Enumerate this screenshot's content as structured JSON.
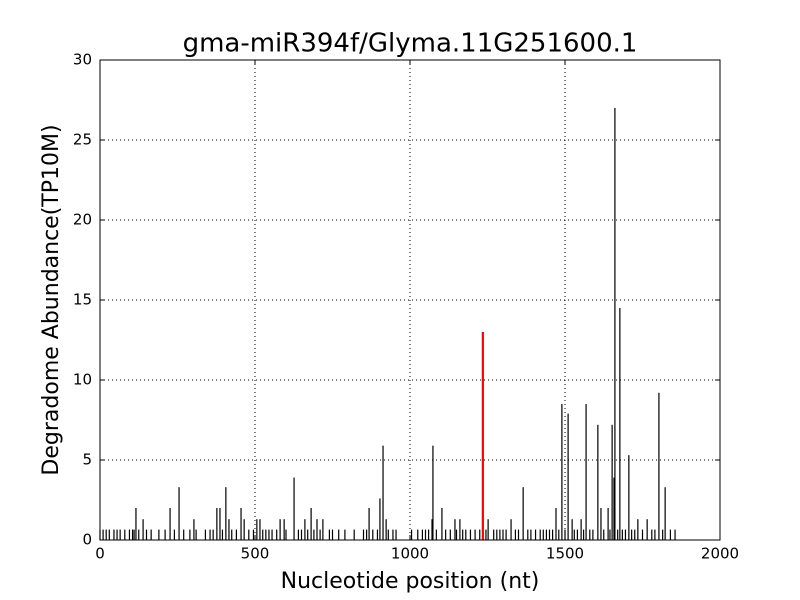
{
  "chart_data": {
    "type": "stem",
    "title": "gma-miR394f/Glyma.11G251600.1",
    "xlabel": "Nucleotide position (nt)",
    "ylabel": "Degradome Abundance(TP10M)",
    "xlim": [
      0,
      2000
    ],
    "ylim": [
      0,
      30
    ],
    "xticks": [
      0,
      500,
      1000,
      1500,
      2000
    ],
    "yticks": [
      0,
      5,
      10,
      15,
      20,
      25,
      30
    ],
    "grid": true,
    "series": [
      {
        "color": "#000000",
        "x": [
          0,
          10,
          20,
          30,
          45,
          55,
          65,
          80,
          95,
          105,
          110,
          125,
          150,
          165,
          190,
          210,
          240,
          270,
          290,
          310,
          340,
          355,
          365,
          395,
          425,
          440,
          480,
          495,
          525,
          535,
          545,
          555,
          570,
          600,
          640,
          650,
          670,
          690,
          710,
          740,
          750,
          770,
          790,
          820,
          850,
          860,
          880,
          895,
          930,
          945,
          955,
          1005,
          1025,
          1040,
          1050,
          1060,
          1085,
          1115,
          1130,
          1150,
          1170,
          1180,
          1195,
          1210,
          1225,
          1245,
          1270,
          1280,
          1290,
          1300,
          1310,
          1340,
          1350,
          1380,
          1390,
          1405,
          1420,
          1430,
          1440,
          1450,
          1460,
          1480,
          1500,
          1530,
          1540,
          1560,
          1580,
          1590,
          1625,
          1645,
          1670,
          1685,
          1695,
          1715,
          1725,
          1750,
          1780,
          1790,
          1815,
          1840,
          1855
        ],
        "values": [
          0.65,
          0.65,
          0.65,
          0.65,
          0.65,
          0.65,
          0.65,
          0.65,
          0.65,
          0.65,
          0.65,
          0.65,
          0.65,
          0.65,
          0.65,
          0.65,
          0.65,
          0.65,
          0.65,
          0.65,
          0.65,
          0.65,
          0.65,
          0.65,
          0.65,
          0.65,
          0.65,
          0.65,
          0.65,
          0.65,
          0.65,
          0.65,
          0.65,
          0.65,
          0.65,
          0.65,
          0.65,
          0.65,
          0.65,
          0.65,
          0.65,
          0.65,
          0.65,
          0.65,
          0.65,
          0.65,
          0.65,
          0.65,
          0.65,
          0.65,
          0.65,
          0.65,
          0.65,
          0.65,
          0.65,
          0.65,
          0.65,
          0.65,
          0.65,
          0.65,
          0.65,
          0.65,
          0.65,
          0.65,
          0.65,
          0.65,
          0.65,
          0.65,
          0.65,
          0.65,
          0.65,
          0.65,
          0.65,
          0.65,
          0.65,
          0.65,
          0.65,
          0.65,
          0.65,
          0.65,
          0.65,
          0.65,
          0.65,
          0.65,
          0.65,
          0.65,
          0.65,
          0.65,
          0.65,
          0.65,
          0.65,
          0.65,
          0.65,
          0.65,
          0.65,
          0.65,
          0.65,
          0.65,
          0.65,
          0.65,
          0.65
        ]
      },
      {
        "color": "#000000",
        "x": [
          116,
          139,
          226,
          255,
          303,
          377,
          387,
          406,
          416,
          455,
          465,
          506,
          516,
          581,
          594,
          626,
          661,
          681,
          700,
          719,
          868,
          903,
          913,
          923,
          1071,
          1074,
          1103,
          1145,
          1161,
          1252,
          1326,
          1365,
          1471,
          1490,
          1510,
          1523,
          1552,
          1568,
          1606,
          1616,
          1639,
          1652,
          1658,
          1661,
          1677,
          1706,
          1735,
          1765,
          1803,
          1823
        ],
        "values": [
          2,
          1.3,
          2,
          3.3,
          1.3,
          2,
          2,
          3.3,
          1.3,
          2,
          1.3,
          1.3,
          1.3,
          1.3,
          1.3,
          3.9,
          1.3,
          2,
          1.3,
          1.3,
          2,
          2.6,
          5.9,
          1.3,
          1.3,
          5.9,
          2,
          1.3,
          1.3,
          1.3,
          1.3,
          3.3,
          2,
          8.5,
          7.9,
          1.3,
          1.3,
          8.5,
          7.2,
          2,
          2,
          7.2,
          3.9,
          27,
          14.5,
          5.3,
          1.3,
          1.3,
          9.2,
          3.3
        ]
      },
      {
        "color": "#ff0000",
        "x": [
          1235
        ],
        "values": [
          13
        ]
      }
    ]
  }
}
